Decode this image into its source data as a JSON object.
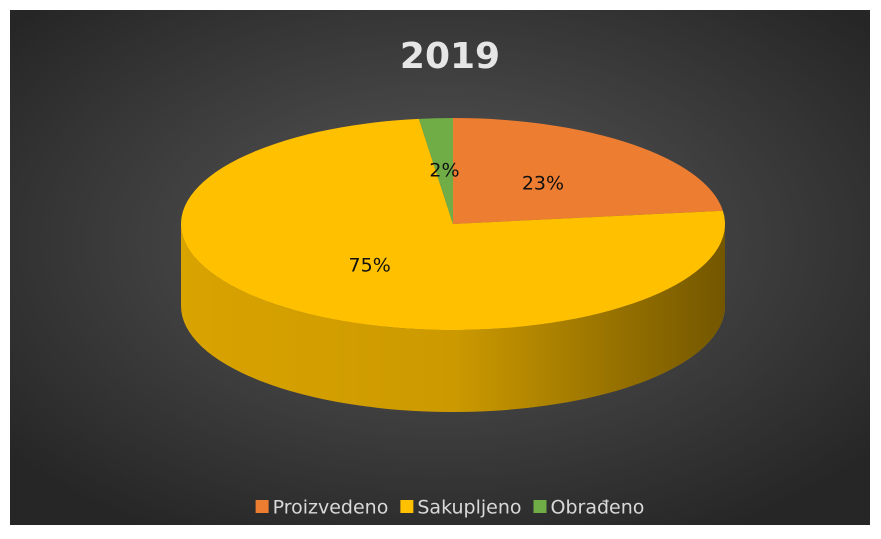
{
  "chart_data": {
    "type": "pie3d",
    "title": "2019",
    "categories": [
      "Proizvedeno",
      "Sakupljeno",
      "Obrađeno"
    ],
    "values": [
      23,
      75,
      2
    ],
    "value_labels": [
      "23%",
      "75%",
      "2%"
    ],
    "colors": [
      "#ed7d31",
      "#ffc000",
      "#70ad47"
    ],
    "legend": "bottom"
  }
}
